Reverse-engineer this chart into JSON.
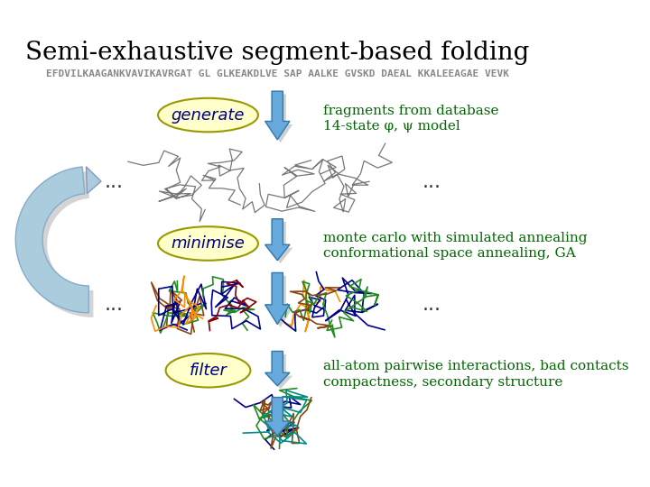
{
  "title": "Semi-exhaustive segment-based folding",
  "sequence": "EFDVILKAAGANKVAVIKAVRGAT GL GLKEAKDLVE SAP AALKE GVSKD DAEAL KKALEEAGAE VEVK",
  "generate_label": "generate",
  "minimise_label": "minimise",
  "filter_label": "filter",
  "frag_text1": "fragments from database",
  "frag_text2": "14-state φ, ψ model",
  "mc_text1": "monte carlo with simulated annealing",
  "mc_text2": "conformational space annealing, GA",
  "filter_text1": "all-atom pairwise interactions, bad contacts",
  "filter_text2": "compactness, secondary structure",
  "title_fontsize": 20,
  "seq_fontsize": 8,
  "label_fontsize": 13,
  "desc_fontsize": 11,
  "ellipse_facecolor": "#ffffcc",
  "ellipse_edgecolor": "#999900",
  "arrow_color": "#4499cc",
  "arrow_dark": "#2277aa",
  "loop_arrow_color": "#aaccdd",
  "dots_color": "#000000",
  "seq_color": "#888888",
  "green_text": "#006600",
  "title_color": "#000000",
  "bg_color": "#ffffff"
}
